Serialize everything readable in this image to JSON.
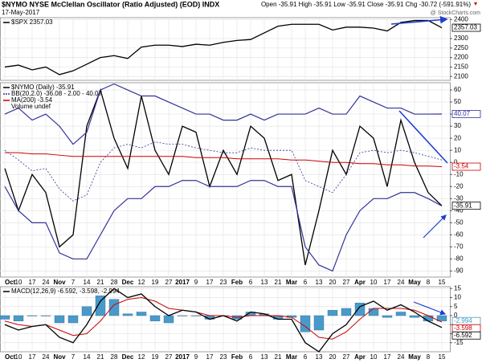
{
  "header": {
    "title": "$NYMO NYSE McClellan Oscillator (Ratio Adjusted) (EOD) INDX",
    "date": "17-May-2017",
    "stats": "Open -35.91 High -35.91 Low -35.91 Close -35.91 Chg -30.72 (-591.91%)",
    "credit": "@ StockCharts.com"
  },
  "chart_data": [
    {
      "type": "line",
      "series": [
        {
          "name": "$SPX 2357.03",
          "color": "#000000",
          "values": [
            2150,
            2160,
            2135,
            2150,
            2110,
            2130,
            2165,
            2200,
            2210,
            2195,
            2255,
            2265,
            2265,
            2258,
            2270,
            2265,
            2280,
            2290,
            2295,
            2330,
            2365,
            2375,
            2375,
            2375,
            2345,
            2360,
            2360,
            2355,
            2340,
            2385,
            2395,
            2395,
            2357.03
          ]
        }
      ],
      "ylim": [
        2080,
        2410
      ],
      "yticks": [
        2100,
        2150,
        2200,
        2250,
        2300,
        2400
      ],
      "grid": true
    },
    {
      "type": "line",
      "categories": [
        "Oct",
        "10",
        "17",
        "24",
        "Nov",
        "7",
        "14",
        "21",
        "28",
        "Dec",
        "12",
        "19",
        "27",
        "2017",
        "9",
        "17",
        "23",
        "Feb",
        "6",
        "13",
        "21",
        "Mar",
        "6",
        "13",
        "20",
        "27",
        "Apr",
        "10",
        "17",
        "24",
        "May",
        "8",
        "15"
      ],
      "series": [
        {
          "name": "$NYMO (Daily) -35.91",
          "color": "#000000",
          "values": [
            -5,
            -40,
            -10,
            -25,
            -70,
            -60,
            30,
            60,
            20,
            -5,
            55,
            10,
            -10,
            30,
            25,
            -20,
            10,
            -10,
            30,
            20,
            -15,
            -10,
            -85,
            -40,
            10,
            -10,
            30,
            20,
            -20,
            35,
            0,
            -25,
            -35.91
          ]
        },
        {
          "name": "BB(20,2.0) -36.08 - 2.00 - 40.07",
          "color": "#33339a",
          "upper": [
            40,
            45,
            35,
            40,
            30,
            15,
            25,
            60,
            65,
            60,
            55,
            55,
            50,
            45,
            40,
            40,
            35,
            35,
            40,
            35,
            40,
            40,
            40,
            45,
            40,
            40,
            55,
            50,
            45,
            45,
            40,
            40,
            40.07
          ],
          "middle": [
            10,
            2,
            -7,
            -5,
            -22,
            -32,
            -27,
            0,
            12,
            15,
            12,
            17,
            15,
            15,
            12,
            10,
            8,
            8,
            12,
            10,
            10,
            10,
            -15,
            -20,
            -25,
            -10,
            8,
            10,
            8,
            10,
            8,
            5,
            2
          ],
          "lower": [
            -20,
            -40,
            -50,
            -50,
            -75,
            -80,
            -80,
            -60,
            -40,
            -30,
            -30,
            -20,
            -20,
            -15,
            -15,
            -20,
            -20,
            -20,
            -15,
            -15,
            -20,
            -20,
            -70,
            -85,
            -90,
            -60,
            -40,
            -30,
            -30,
            -25,
            -25,
            -30,
            -36.08
          ]
        },
        {
          "name": "MA(200) -3.54",
          "color": "#cc0000",
          "values": [
            8,
            8,
            7,
            7,
            6,
            5,
            5,
            5,
            5,
            5,
            5,
            5,
            5,
            5,
            4,
            4,
            4,
            3,
            3,
            3,
            3,
            2,
            2,
            1,
            0,
            0,
            -1,
            -1,
            -2,
            -2,
            -3,
            -3,
            -3.54
          ]
        }
      ],
      "legend_note": "Volume undef",
      "ylim": [
        -95,
        66
      ],
      "yticks": [
        60,
        50,
        40,
        30,
        20,
        10,
        0,
        -10,
        -20,
        -30,
        -40,
        -50,
        -60,
        -70,
        -80,
        -90
      ],
      "grid": true
    },
    {
      "type": "macd",
      "categories": [
        "Oct",
        "10",
        "17",
        "24",
        "Nov",
        "7",
        "14",
        "21",
        "28",
        "Dec",
        "12",
        "19",
        "27",
        "2017",
        "9",
        "17",
        "23",
        "Feb",
        "6",
        "13",
        "21",
        "Mar",
        "6",
        "13",
        "20",
        "27",
        "Apr",
        "10",
        "17",
        "24",
        "May",
        "8",
        "15"
      ],
      "series": [
        {
          "name": "MACD(12,26,9) -6.592, -3.598, -2.994",
          "color": "#000000",
          "signal_color": "#cc0000",
          "histogram_color": "#4a9ac9",
          "macd": [
            -5,
            -8,
            -6,
            -5,
            -12,
            -15,
            -5,
            8,
            15,
            10,
            12,
            5,
            0,
            3,
            2,
            -2,
            0,
            -3,
            2,
            1,
            -2,
            -2,
            -15,
            -20,
            -10,
            -5,
            5,
            8,
            3,
            6,
            2,
            -3,
            -6.592
          ],
          "signal": [
            -3,
            -5,
            -6,
            -5,
            -8,
            -11,
            -10,
            -3,
            6,
            9,
            10,
            8,
            4,
            3,
            2,
            0,
            0,
            -1,
            0,
            0,
            0,
            -1,
            -6,
            -12,
            -13,
            -9,
            -2,
            4,
            4,
            4,
            3,
            0,
            -3.598
          ],
          "histogram": [
            -2,
            -3,
            0,
            0,
            -4,
            -4,
            5,
            11,
            9,
            1,
            2,
            -3,
            -4,
            0,
            0,
            -2,
            0,
            -2,
            2,
            1,
            -2,
            -1,
            -9,
            -8,
            3,
            4,
            7,
            4,
            -1,
            2,
            -1,
            -3,
            -2.994
          ]
        }
      ],
      "ylim": [
        -20,
        16
      ],
      "yticks": [
        15,
        10,
        5,
        0,
        -5,
        -10,
        -15
      ],
      "grid": true
    }
  ]
}
